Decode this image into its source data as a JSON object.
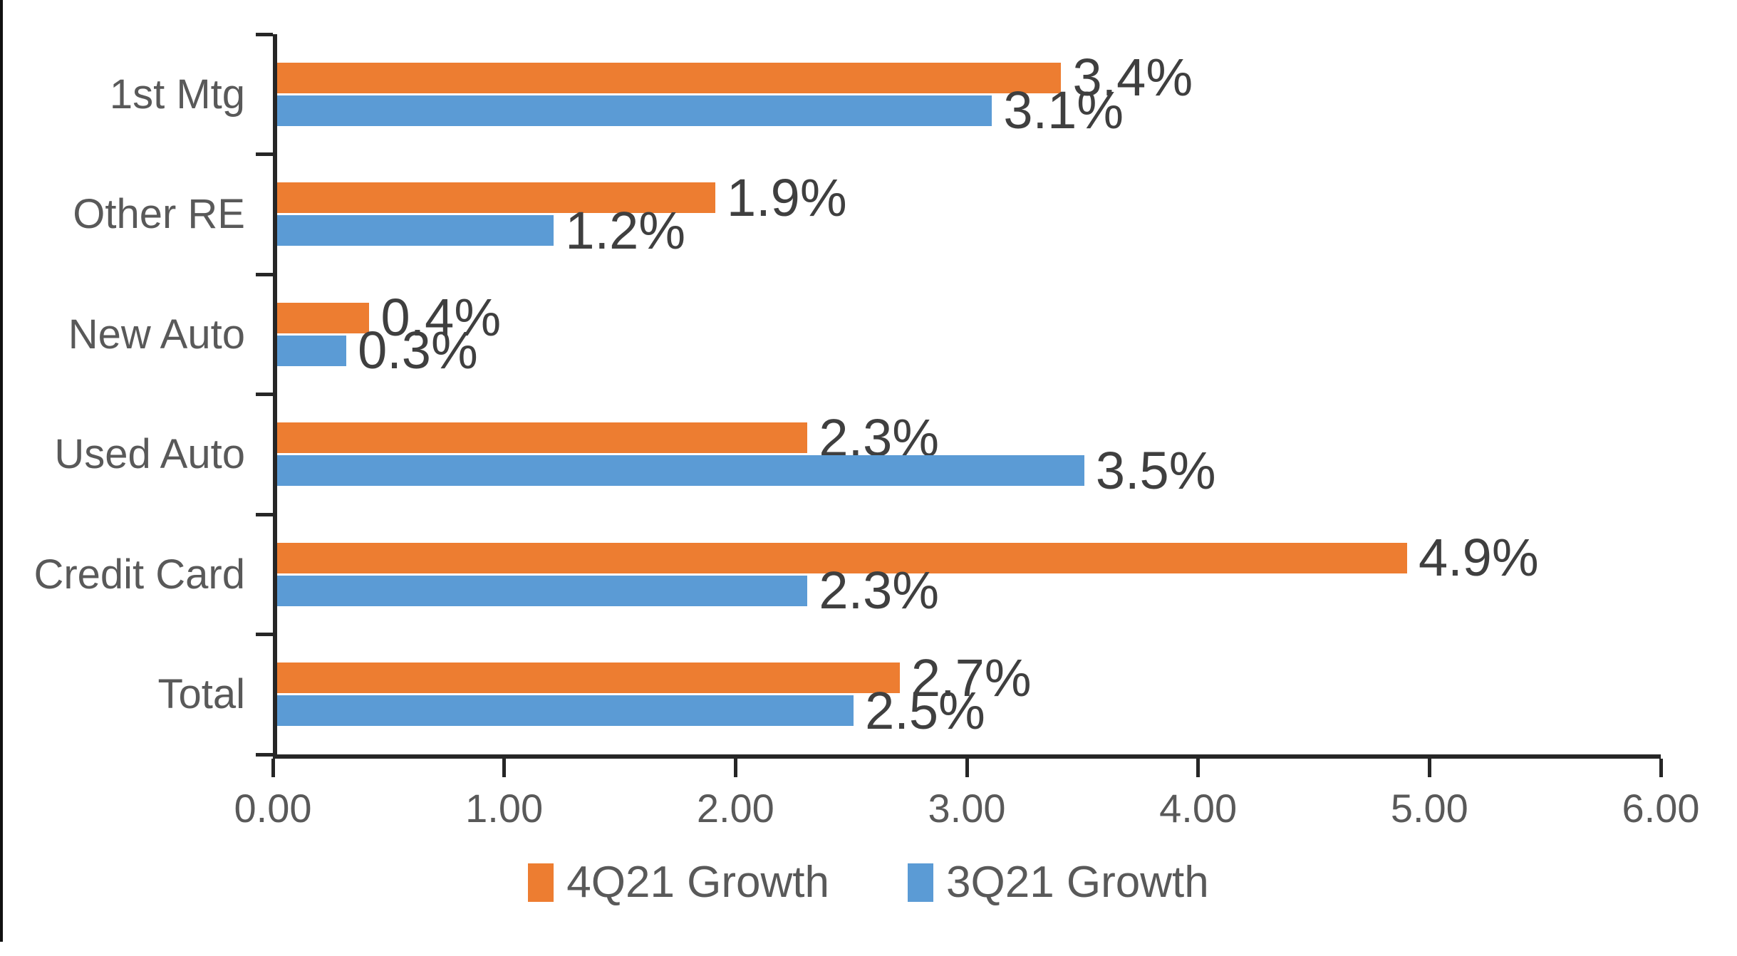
{
  "chart_data": {
    "type": "bar",
    "orientation": "horizontal",
    "title": "",
    "xlabel": "",
    "ylabel": "",
    "categories": [
      "1st Mtg",
      "Other RE",
      "New Auto",
      "Used Auto",
      "Credit Card",
      "Total"
    ],
    "series": [
      {
        "name": "4Q21 Growth",
        "color": "#ED7D31",
        "values": [
          3.4,
          1.9,
          0.4,
          2.3,
          4.9,
          2.7
        ],
        "data_labels": [
          "3.4%",
          "1.9%",
          "0.4%",
          "2.3%",
          "4.9%",
          "2.7%"
        ]
      },
      {
        "name": "3Q21 Growth",
        "color": "#5B9BD5",
        "values": [
          3.1,
          1.2,
          0.3,
          3.5,
          2.3,
          2.5
        ],
        "data_labels": [
          "3.1%",
          "1.2%",
          "0.3%",
          "3.5%",
          "2.3%",
          "2.5%"
        ]
      }
    ],
    "xlim": [
      0,
      6
    ],
    "x_tick_labels": [
      "0.00",
      "1.00",
      "2.00",
      "3.00",
      "4.00",
      "5.00",
      "6.00"
    ],
    "grid": false,
    "legend_position": "bottom"
  },
  "legend": {
    "items": [
      {
        "label": "4Q21 Growth",
        "color": "#ED7D31"
      },
      {
        "label": "3Q21 Growth",
        "color": "#5B9BD5"
      }
    ]
  },
  "colors": {
    "axis_line": "#262626",
    "axis_text": "#595959",
    "data_label_text": "#3F3F3F",
    "edge_line": "#111111",
    "background": "#FFFFFF"
  }
}
